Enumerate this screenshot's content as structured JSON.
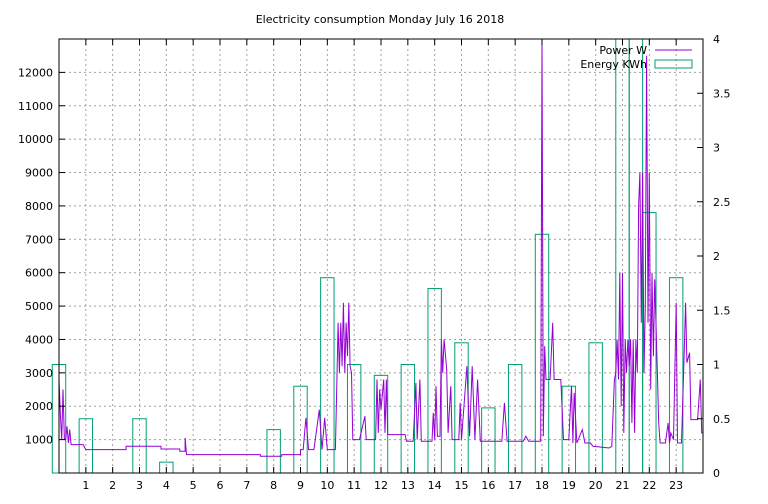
{
  "chart_data": {
    "type": "line",
    "title": "Electricity consumption Monday July 16 2018",
    "xlabel": "",
    "ylabel": "",
    "y2label": "",
    "xlim": [
      0,
      24
    ],
    "ylim": [
      0,
      13000
    ],
    "y2lim": [
      0,
      4
    ],
    "grid": true,
    "legend_position": "top-right",
    "x_ticks": [
      1,
      2,
      3,
      4,
      5,
      6,
      7,
      8,
      9,
      10,
      11,
      12,
      13,
      14,
      15,
      16,
      17,
      18,
      19,
      20,
      21,
      22,
      23
    ],
    "y_ticks": [
      1000,
      2000,
      3000,
      4000,
      5000,
      6000,
      7000,
      8000,
      9000,
      10000,
      11000,
      12000
    ],
    "y2_ticks": [
      0,
      0.5,
      1,
      1.5,
      2,
      2.5,
      3,
      3.5,
      4
    ],
    "colors": {
      "power": "#9400d3",
      "energy": "#009e73",
      "grid": "#a0a0a0"
    },
    "series": [
      {
        "name": "Power W",
        "axis": "left",
        "style": "line",
        "points": [
          [
            0.0,
            2800
          ],
          [
            0.05,
            1800
          ],
          [
            0.1,
            1000
          ],
          [
            0.15,
            2500
          ],
          [
            0.2,
            1000
          ],
          [
            0.25,
            1000
          ],
          [
            0.3,
            1400
          ],
          [
            0.35,
            900
          ],
          [
            0.4,
            1300
          ],
          [
            0.45,
            850
          ],
          [
            0.6,
            850
          ],
          [
            0.9,
            850
          ],
          [
            1.0,
            700
          ],
          [
            1.5,
            700
          ],
          [
            2.0,
            700
          ],
          [
            2.5,
            700
          ],
          [
            2.5,
            800
          ],
          [
            3.0,
            800
          ],
          [
            3.5,
            800
          ],
          [
            3.8,
            800
          ],
          [
            3.8,
            720
          ],
          [
            4.5,
            720
          ],
          [
            4.5,
            650
          ],
          [
            4.7,
            650
          ],
          [
            4.7,
            1050
          ],
          [
            4.75,
            550
          ],
          [
            5.0,
            550
          ],
          [
            6.0,
            550
          ],
          [
            7.0,
            550
          ],
          [
            7.5,
            550
          ],
          [
            7.5,
            500
          ],
          [
            8.3,
            500
          ],
          [
            8.3,
            550
          ],
          [
            9.0,
            550
          ],
          [
            9.0,
            700
          ],
          [
            9.1,
            700
          ],
          [
            9.2,
            1650
          ],
          [
            9.3,
            700
          ],
          [
            9.5,
            700
          ],
          [
            9.7,
            1900
          ],
          [
            9.8,
            700
          ],
          [
            9.9,
            1650
          ],
          [
            10.0,
            700
          ],
          [
            10.3,
            700
          ],
          [
            10.35,
            2500
          ],
          [
            10.4,
            4500
          ],
          [
            10.45,
            3000
          ],
          [
            10.5,
            4500
          ],
          [
            10.55,
            3200
          ],
          [
            10.6,
            5100
          ],
          [
            10.65,
            3000
          ],
          [
            10.7,
            4500
          ],
          [
            10.75,
            3500
          ],
          [
            10.8,
            5100
          ],
          [
            10.85,
            3200
          ],
          [
            10.9,
            3000
          ],
          [
            10.95,
            1000
          ],
          [
            11.2,
            1000
          ],
          [
            11.4,
            1700
          ],
          [
            11.45,
            1000
          ],
          [
            11.8,
            1000
          ],
          [
            11.85,
            2800
          ],
          [
            11.9,
            1200
          ],
          [
            11.95,
            2500
          ],
          [
            12.0,
            1900
          ],
          [
            12.1,
            2800
          ],
          [
            12.15,
            1200
          ],
          [
            12.2,
            2800
          ],
          [
            12.25,
            1150
          ],
          [
            12.5,
            1150
          ],
          [
            12.9,
            1150
          ],
          [
            12.95,
            950
          ],
          [
            13.2,
            950
          ],
          [
            13.3,
            2700
          ],
          [
            13.35,
            1000
          ],
          [
            13.45,
            2800
          ],
          [
            13.5,
            950
          ],
          [
            13.9,
            950
          ],
          [
            13.95,
            1800
          ],
          [
            14.0,
            1000
          ],
          [
            14.05,
            2600
          ],
          [
            14.1,
            1100
          ],
          [
            14.2,
            1100
          ],
          [
            14.25,
            4000
          ],
          [
            14.3,
            3000
          ],
          [
            14.35,
            4000
          ],
          [
            14.45,
            3100
          ],
          [
            14.5,
            1200
          ],
          [
            14.6,
            2600
          ],
          [
            14.65,
            1000
          ],
          [
            14.9,
            1000
          ],
          [
            14.95,
            2100
          ],
          [
            15.0,
            1000
          ],
          [
            15.2,
            3200
          ],
          [
            15.3,
            1100
          ],
          [
            15.4,
            3200
          ],
          [
            15.5,
            1000
          ],
          [
            15.6,
            2800
          ],
          [
            15.7,
            950
          ],
          [
            16.0,
            950
          ],
          [
            16.5,
            950
          ],
          [
            16.6,
            2100
          ],
          [
            16.7,
            950
          ],
          [
            17.0,
            950
          ],
          [
            17.3,
            950
          ],
          [
            17.4,
            1100
          ],
          [
            17.5,
            950
          ],
          [
            17.8,
            950
          ],
          [
            17.95,
            950
          ],
          [
            18.0,
            13000
          ],
          [
            18.05,
            1100
          ],
          [
            18.1,
            3800
          ],
          [
            18.15,
            2800
          ],
          [
            18.3,
            2800
          ],
          [
            18.4,
            4500
          ],
          [
            18.45,
            2800
          ],
          [
            18.7,
            2800
          ],
          [
            18.8,
            1000
          ],
          [
            19.0,
            1000
          ],
          [
            19.1,
            2600
          ],
          [
            19.15,
            900
          ],
          [
            19.2,
            2400
          ],
          [
            19.3,
            900
          ],
          [
            19.5,
            1300
          ],
          [
            19.6,
            900
          ],
          [
            19.8,
            900
          ],
          [
            19.9,
            800
          ],
          [
            20.5,
            750
          ],
          [
            20.6,
            800
          ],
          [
            20.7,
            2800
          ],
          [
            20.75,
            3000
          ],
          [
            20.8,
            4000
          ],
          [
            20.85,
            2800
          ],
          [
            20.9,
            6000
          ],
          [
            20.95,
            2000
          ],
          [
            21.0,
            6000
          ],
          [
            21.05,
            1200
          ],
          [
            21.1,
            4000
          ],
          [
            21.15,
            3000
          ],
          [
            21.2,
            4000
          ],
          [
            21.25,
            3200
          ],
          [
            21.3,
            4000
          ],
          [
            21.35,
            1500
          ],
          [
            21.4,
            4000
          ],
          [
            21.45,
            1200
          ],
          [
            21.5,
            4000
          ],
          [
            21.55,
            3000
          ],
          [
            21.6,
            8000
          ],
          [
            21.65,
            9000
          ],
          [
            21.7,
            4500
          ],
          [
            21.75,
            9000
          ],
          [
            21.8,
            3000
          ],
          [
            21.85,
            5000
          ],
          [
            21.9,
            12500
          ],
          [
            21.95,
            4500
          ],
          [
            22.0,
            9000
          ],
          [
            22.05,
            2500
          ],
          [
            22.1,
            6000
          ],
          [
            22.15,
            3500
          ],
          [
            22.2,
            5800
          ],
          [
            22.3,
            3000
          ],
          [
            22.35,
            1500
          ],
          [
            22.4,
            900
          ],
          [
            22.6,
            900
          ],
          [
            22.7,
            1500
          ],
          [
            22.75,
            900
          ],
          [
            22.8,
            1200
          ],
          [
            22.9,
            1000
          ],
          [
            23.0,
            5100
          ],
          [
            23.05,
            900
          ],
          [
            23.2,
            900
          ],
          [
            23.3,
            3600
          ],
          [
            23.35,
            5100
          ],
          [
            23.4,
            3300
          ],
          [
            23.5,
            3600
          ],
          [
            23.55,
            1600
          ],
          [
            23.8,
            1600
          ],
          [
            23.9,
            2800
          ],
          [
            23.95,
            1200
          ],
          [
            24.0,
            1200
          ]
        ]
      },
      {
        "name": "Energy KWh",
        "axis": "right",
        "style": "boxes",
        "box_width": 0.5,
        "x": [
          0,
          1,
          3,
          4,
          8,
          9,
          10,
          11,
          12,
          13,
          14,
          15,
          16,
          17,
          18,
          19,
          20,
          21,
          21.5,
          22,
          23
        ],
        "values": [
          1.0,
          0.5,
          0.5,
          0.1,
          0.4,
          0.8,
          1.8,
          1.0,
          0.9,
          1.0,
          1.7,
          1.2,
          0.6,
          1.0,
          2.2,
          0.8,
          1.2,
          4.0,
          4.0,
          2.4,
          1.8
        ]
      }
    ]
  }
}
